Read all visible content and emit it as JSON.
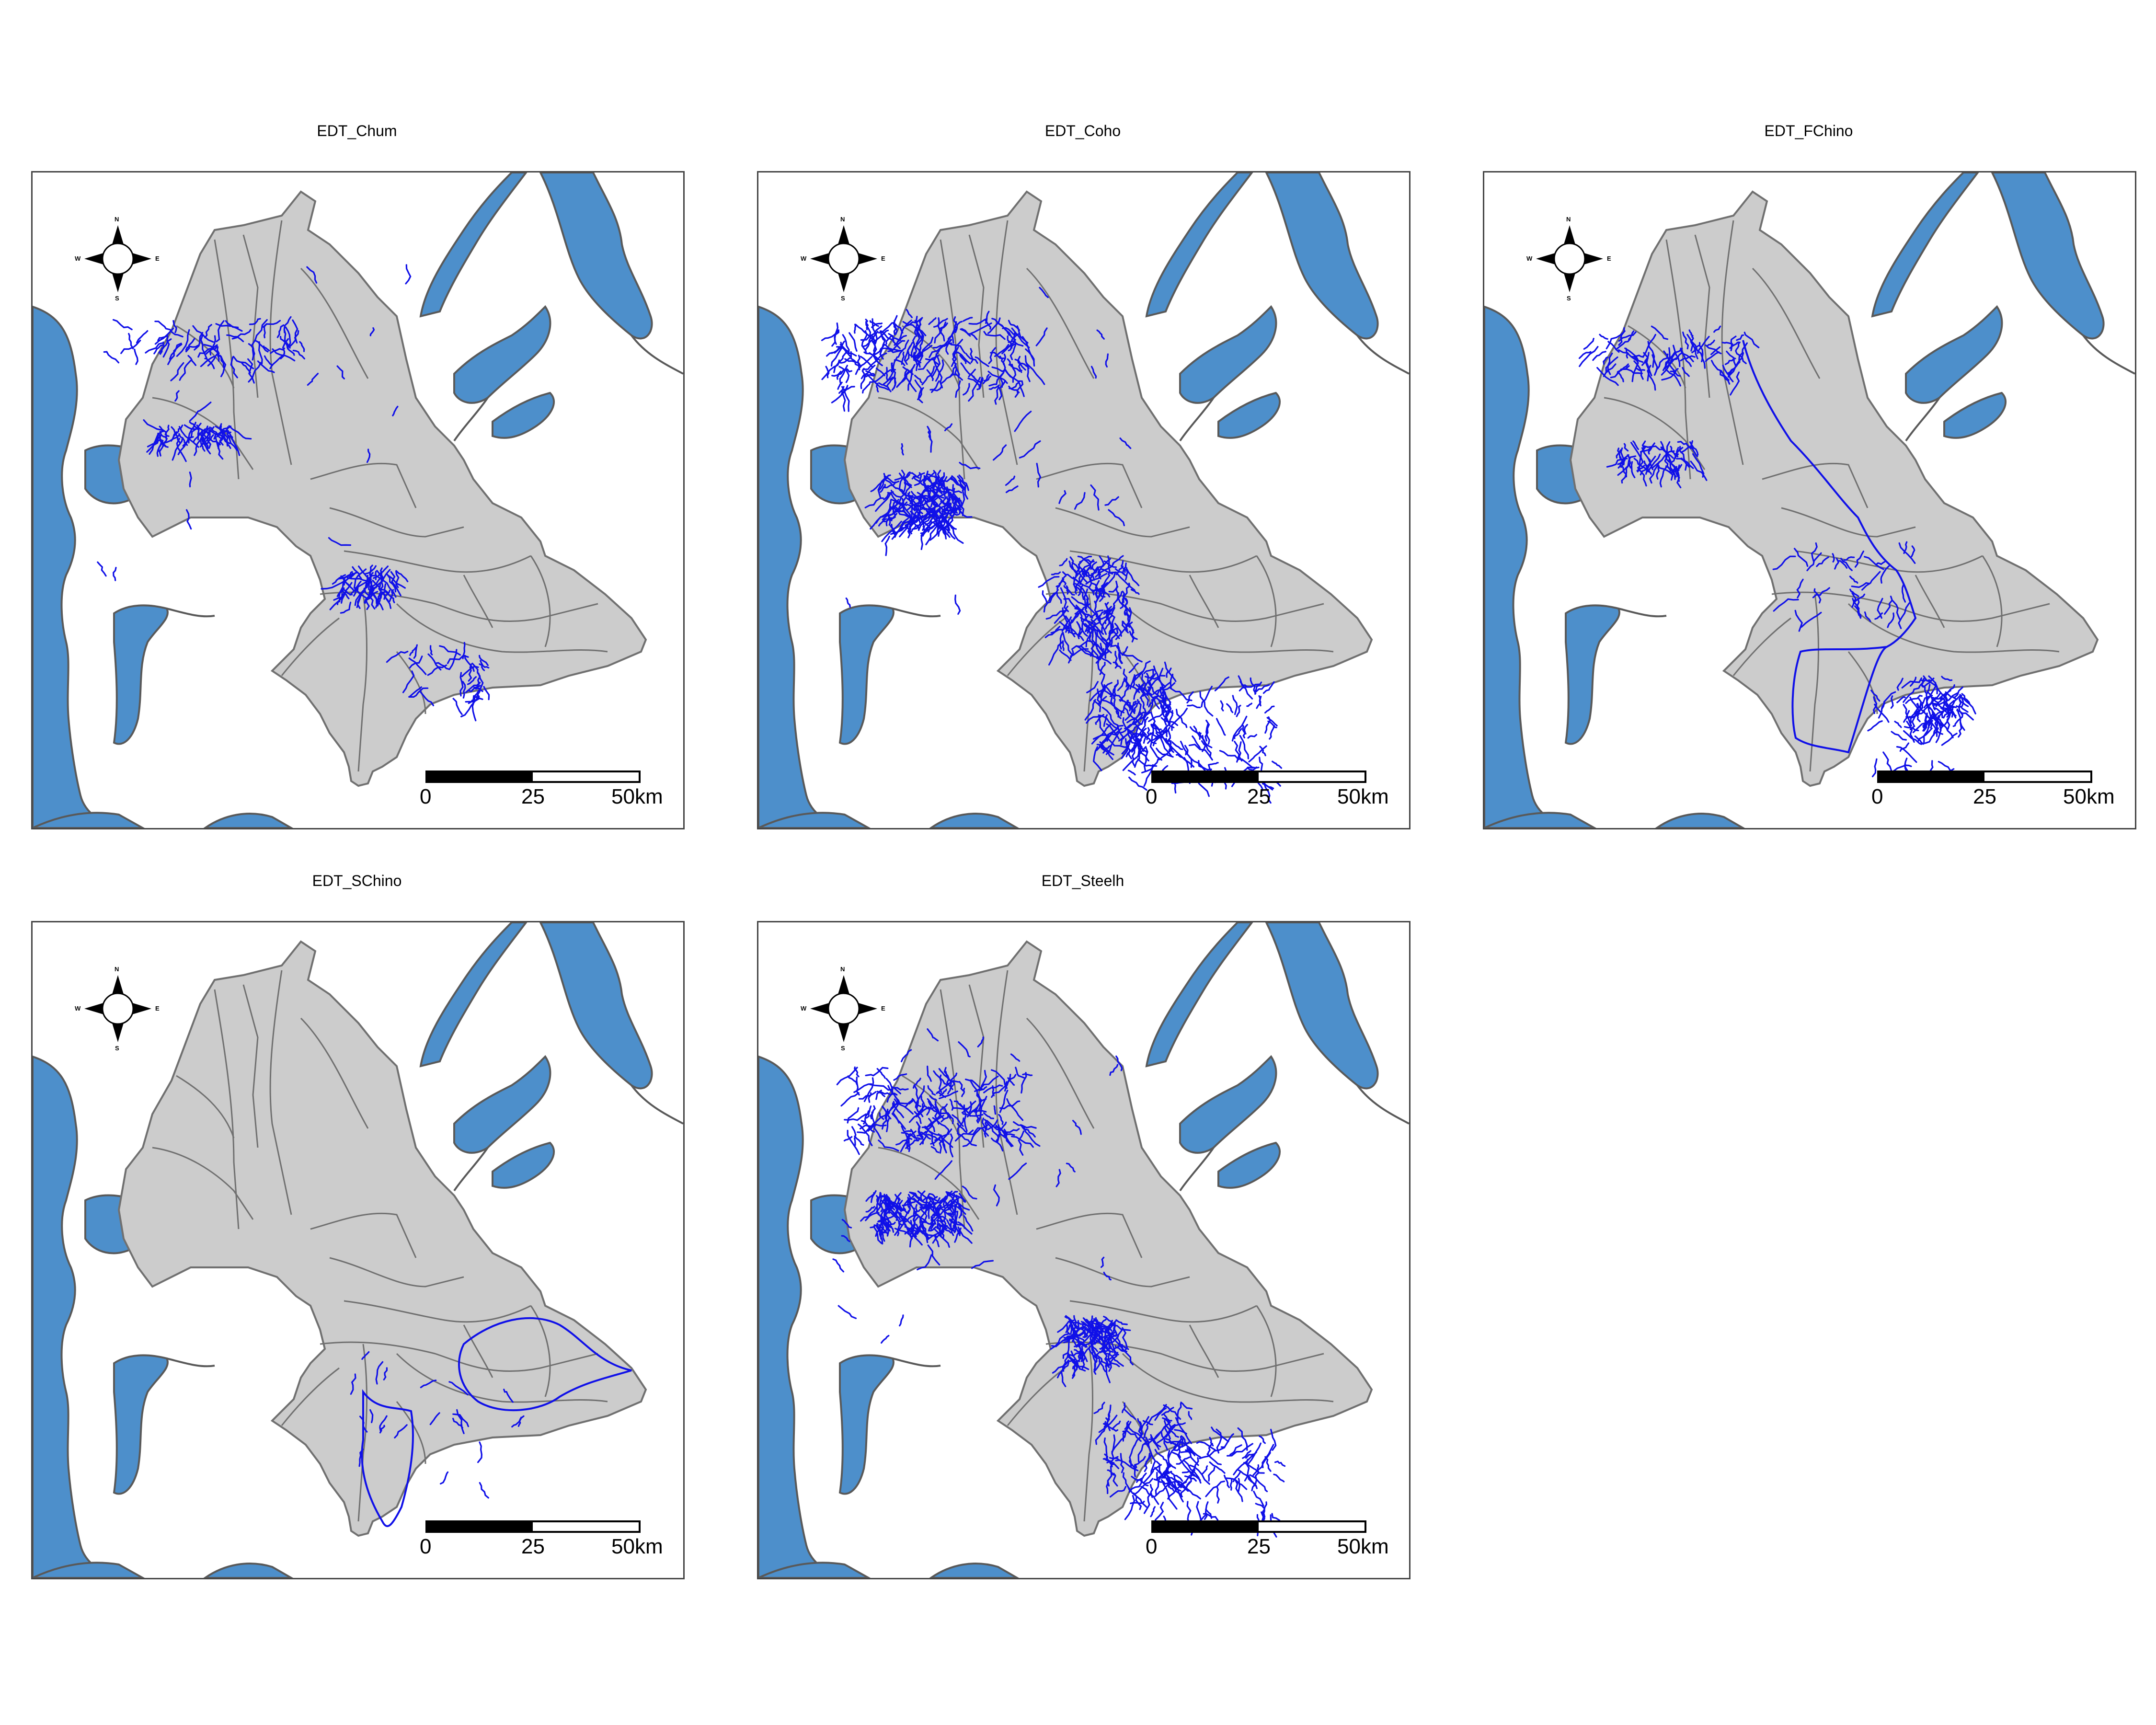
{
  "colors": {
    "water": "#4d8fcb",
    "land": "#cccccc",
    "boundary": "#707070",
    "coastline": "#595959",
    "stream": "#1010e8",
    "frame": "#444444"
  },
  "compass": {
    "north": "N",
    "south": "S",
    "east": "E",
    "west": "W"
  },
  "scale_bar": {
    "ticks": [
      "0",
      "25",
      "50km"
    ]
  },
  "panels": [
    {
      "id": "chum",
      "title": "EDT_Chum",
      "stream_density": "moderate-north-and-east"
    },
    {
      "id": "coho",
      "title": "EDT_Coho",
      "stream_density": "very-dense-everywhere"
    },
    {
      "id": "fchino",
      "title": "EDT_FChino",
      "stream_density": "main-stem-and-east"
    },
    {
      "id": "schino",
      "title": "EDT_SChino",
      "stream_density": "sparse-southeast-only"
    },
    {
      "id": "steelh",
      "title": "EDT_Steelh",
      "stream_density": "dense-everywhere"
    }
  ]
}
